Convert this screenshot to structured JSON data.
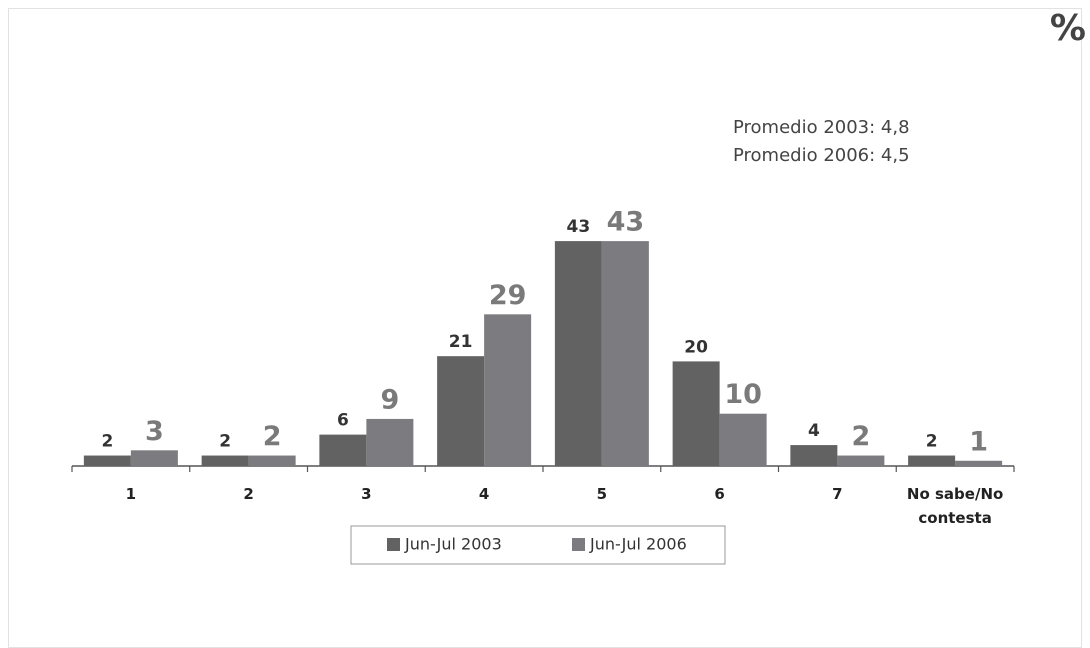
{
  "chart_data": {
    "type": "bar",
    "unit_label": "%",
    "annotations": [
      "Promedio 2003: 4,8",
      "Promedio 2006: 4,5"
    ],
    "categories": [
      "1",
      "2",
      "3",
      "4",
      "5",
      "6",
      "7",
      "No sabe/No contesta"
    ],
    "series": [
      {
        "name": "Jun-Jul 2003",
        "color": "#626262",
        "values": [
          2,
          2,
          6,
          21,
          43,
          20,
          4,
          2
        ]
      },
      {
        "name": "Jun-Jul 2006",
        "color": "#7c7c80",
        "values": [
          3,
          2,
          9,
          29,
          43,
          10,
          2,
          1
        ]
      }
    ]
  }
}
